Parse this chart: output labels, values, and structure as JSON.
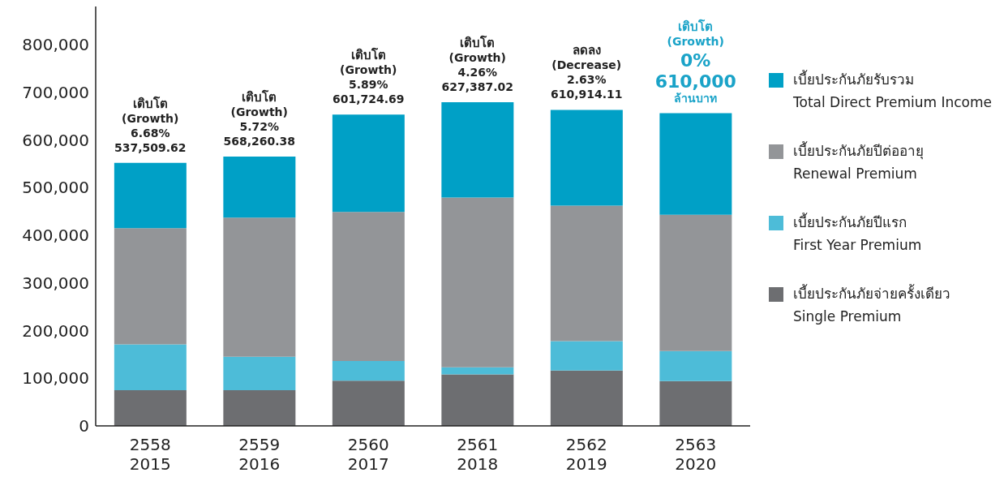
{
  "chart_data": {
    "type": "bar",
    "stacked": true,
    "categories": [
      "2558\n2015",
      "2559\n2016",
      "2560\n2017",
      "2561\n2018",
      "2562\n2019",
      "2563\n2020"
    ],
    "series": [
      {
        "name": "เบี้ยประกันภัยจ่ายครั้งเดียว\nSingle Premium",
        "color": "#6d6e71",
        "values": [
          75000,
          75000,
          95000,
          108000,
          116000,
          94000
        ]
      },
      {
        "name": "เบี้ยประกันภัยปีแรก\nFirst Year Premium",
        "color": "#4dbcd8",
        "values": [
          96000,
          70000,
          41000,
          15000,
          62000,
          63000
        ]
      },
      {
        "name": "เบี้ยประกันภัยปีต่ออายุ\nRenewal Premium",
        "color": "#939598",
        "values": [
          244000,
          292000,
          313000,
          356000,
          284000,
          286000
        ]
      },
      {
        "name": "เบี้ยประกันภัยรับรวม\nTotal Direct Premium Income",
        "color": "#00a0c6",
        "values": [
          137000,
          128000,
          204000,
          200000,
          201000,
          213000
        ]
      }
    ],
    "ylim": [
      0,
      880000
    ],
    "yticks": [
      0,
      {
        "value": 100000,
        "label": "100,000"
      },
      {
        "value": 200000,
        "label": "200,000"
      },
      {
        "value": 300000,
        "label": "300,000"
      },
      {
        "value": 400000,
        "label": "400,000"
      },
      {
        "value": 500000,
        "label": "500,000"
      },
      {
        "value": 600000,
        "label": "600,000"
      },
      {
        "value": 700000,
        "label": "700,000"
      },
      {
        "value": 800000,
        "label": "800,000"
      }
    ],
    "legend": "right",
    "annotations": [
      {
        "text": "เติบโต\n(Growth)\n6.68%\n537,509.62",
        "x": "2558\n2015",
        "y": 552000
      },
      {
        "text": "เติบโต\n(Growth)\n5.72%\n568,260.38",
        "x": "2559\n2016",
        "y": 565000
      },
      {
        "text": "เติบโต\n(Growth)\n5.89%\n601,724.69",
        "x": "2560\n2017",
        "y": 653000
      },
      {
        "text": "เติบโต\n(Growth)\n4.26%\n627,387.02",
        "x": "2561\n2018",
        "y": 679000
      },
      {
        "text": "ลดลง\n(Decrease)\n2.63%\n610,914.11",
        "x": "2562\n2019",
        "y": 663000
      },
      {
        "text": "เติบโต\n(Growth)\n0%\n610,000\nล้านบาท",
        "x": "2563\n2020",
        "y": 656000
      }
    ]
  }
}
